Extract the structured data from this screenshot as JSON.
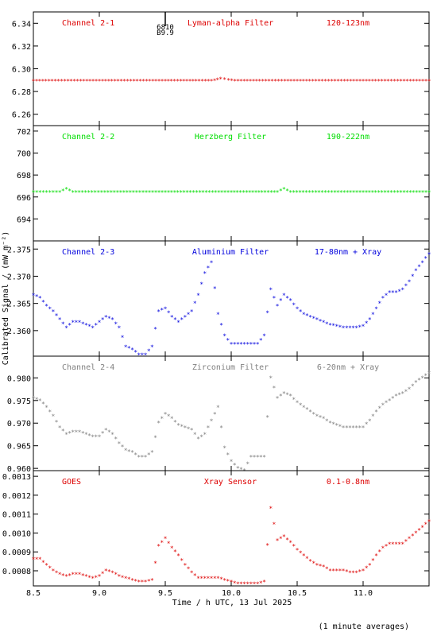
{
  "figure": {
    "x_axis_label": "Time / h UTC, 13 Jul 2025",
    "y_axis_label": "Calibrated Signal / (mW m⁻²)",
    "footnote": "(1 minute averages)",
    "x_range": [
      8.5,
      11.5
    ],
    "x_ticks": [
      "8.5",
      "9.0",
      "9.5",
      "10.0",
      "10.5",
      "11.0"
    ],
    "marker_top_label1": "6810",
    "marker_top_label2": "B9.9",
    "marker_top_time": 9.5
  },
  "chart_data": [
    {
      "type": "scatter",
      "channel_label": "Channel 2-1",
      "filter_label": "Lyman-alpha Filter",
      "range_label": "120-123nm",
      "color": "#dd0000",
      "ylim": [
        6.25,
        6.35
      ],
      "y_ticks": [
        "6.26",
        "6.28",
        "6.30",
        "6.32",
        "6.34"
      ],
      "points": [
        [
          8.5,
          6.289
        ],
        [
          9.0,
          6.289
        ],
        [
          9.5,
          6.289
        ],
        [
          9.85,
          6.289
        ],
        [
          9.92,
          6.291
        ],
        [
          9.98,
          6.29
        ],
        [
          10.05,
          6.289
        ],
        [
          10.5,
          6.289
        ],
        [
          11.0,
          6.289
        ],
        [
          11.5,
          6.289
        ]
      ]
    },
    {
      "type": "scatter",
      "channel_label": "Channel 2-2",
      "filter_label": "Herzberg Filter",
      "range_label": "190-222nm",
      "color": "#00dd00",
      "ylim": [
        692.0,
        702.5
      ],
      "y_ticks": [
        "694",
        "696",
        "698",
        "700",
        "702"
      ],
      "points": [
        [
          8.5,
          696.4
        ],
        [
          8.7,
          696.4
        ],
        [
          8.75,
          696.7
        ],
        [
          8.8,
          696.4
        ],
        [
          9.5,
          696.4
        ],
        [
          10.0,
          696.4
        ],
        [
          10.35,
          696.4
        ],
        [
          10.4,
          696.7
        ],
        [
          10.45,
          696.4
        ],
        [
          11.0,
          696.4
        ],
        [
          11.5,
          696.4
        ]
      ]
    },
    {
      "type": "scatter",
      "channel_label": "Channel 2-3",
      "filter_label": "Aluminium Filter",
      "range_label": "17-80nm + Xray",
      "color": "#0000dd",
      "ylim": [
        2.3553,
        2.3765
      ],
      "y_ticks": [
        "2.360",
        "2.365",
        "2.370",
        "2.375"
      ],
      "points": [
        [
          8.5,
          2.3665
        ],
        [
          8.55,
          2.366
        ],
        [
          8.6,
          2.3645
        ],
        [
          8.65,
          2.3635
        ],
        [
          8.7,
          2.362
        ],
        [
          8.75,
          2.3605
        ],
        [
          8.8,
          2.3615
        ],
        [
          8.85,
          2.3615
        ],
        [
          8.9,
          2.361
        ],
        [
          8.95,
          2.3605
        ],
        [
          9.0,
          2.3615
        ],
        [
          9.05,
          2.3625
        ],
        [
          9.1,
          2.362
        ],
        [
          9.15,
          2.3605
        ],
        [
          9.2,
          2.357
        ],
        [
          9.25,
          2.3565
        ],
        [
          9.3,
          2.3555
        ],
        [
          9.35,
          2.3555
        ],
        [
          9.4,
          2.357
        ],
        [
          9.45,
          2.3635
        ],
        [
          9.5,
          2.364
        ],
        [
          9.55,
          2.3625
        ],
        [
          9.6,
          2.3615
        ],
        [
          9.65,
          2.3625
        ],
        [
          9.7,
          2.3635
        ],
        [
          9.75,
          2.3665
        ],
        [
          9.8,
          2.3705
        ],
        [
          9.85,
          2.3725
        ],
        [
          9.9,
          2.363
        ],
        [
          9.95,
          2.359
        ],
        [
          10.0,
          2.3575
        ],
        [
          10.05,
          2.3575
        ],
        [
          10.1,
          2.3575
        ],
        [
          10.15,
          2.3575
        ],
        [
          10.2,
          2.3575
        ],
        [
          10.25,
          2.359
        ],
        [
          10.3,
          2.3675
        ],
        [
          10.35,
          2.3645
        ],
        [
          10.4,
          2.3665
        ],
        [
          10.45,
          2.3655
        ],
        [
          10.5,
          2.364
        ],
        [
          10.55,
          2.363
        ],
        [
          10.6,
          2.3625
        ],
        [
          10.65,
          2.362
        ],
        [
          10.7,
          2.3615
        ],
        [
          10.75,
          2.361
        ],
        [
          10.8,
          2.3608
        ],
        [
          10.85,
          2.3605
        ],
        [
          10.9,
          2.3605
        ],
        [
          10.95,
          2.3605
        ],
        [
          11.0,
          2.3608
        ],
        [
          11.05,
          2.362
        ],
        [
          11.1,
          2.364
        ],
        [
          11.15,
          2.366
        ],
        [
          11.2,
          2.367
        ],
        [
          11.25,
          2.367
        ],
        [
          11.3,
          2.3675
        ],
        [
          11.35,
          2.369
        ],
        [
          11.4,
          2.371
        ],
        [
          11.45,
          2.3725
        ],
        [
          11.5,
          2.374
        ]
      ]
    },
    {
      "type": "scatter",
      "channel_label": "Channel 2-4",
      "filter_label": "Zirconium Filter",
      "range_label": "6-20nm + Xray",
      "color": "#808080",
      "ylim": [
        0.9595,
        0.9848
      ],
      "y_ticks": [
        "0.960",
        "0.965",
        "0.970",
        "0.975",
        "0.980"
      ],
      "points": [
        [
          8.5,
          0.9755
        ],
        [
          8.55,
          0.975
        ],
        [
          8.6,
          0.9735
        ],
        [
          8.65,
          0.9715
        ],
        [
          8.7,
          0.969
        ],
        [
          8.75,
          0.9675
        ],
        [
          8.8,
          0.968
        ],
        [
          8.85,
          0.968
        ],
        [
          8.9,
          0.9675
        ],
        [
          8.95,
          0.967
        ],
        [
          9.0,
          0.967
        ],
        [
          9.05,
          0.9685
        ],
        [
          9.1,
          0.9675
        ],
        [
          9.15,
          0.9655
        ],
        [
          9.2,
          0.964
        ],
        [
          9.25,
          0.9635
        ],
        [
          9.3,
          0.9625
        ],
        [
          9.35,
          0.9625
        ],
        [
          9.4,
          0.9635
        ],
        [
          9.45,
          0.97
        ],
        [
          9.5,
          0.972
        ],
        [
          9.55,
          0.971
        ],
        [
          9.6,
          0.9695
        ],
        [
          9.65,
          0.969
        ],
        [
          9.7,
          0.9685
        ],
        [
          9.75,
          0.9665
        ],
        [
          9.8,
          0.9675
        ],
        [
          9.85,
          0.9705
        ],
        [
          9.9,
          0.9735
        ],
        [
          9.95,
          0.9645
        ],
        [
          10.0,
          0.9615
        ],
        [
          10.05,
          0.96
        ],
        [
          10.1,
          0.9595
        ],
        [
          10.15,
          0.9625
        ],
        [
          10.2,
          0.9625
        ],
        [
          10.25,
          0.9625
        ],
        [
          10.3,
          0.98
        ],
        [
          10.35,
          0.9755
        ],
        [
          10.4,
          0.9765
        ],
        [
          10.45,
          0.976
        ],
        [
          10.5,
          0.9745
        ],
        [
          10.55,
          0.9735
        ],
        [
          10.6,
          0.9725
        ],
        [
          10.65,
          0.9715
        ],
        [
          10.7,
          0.971
        ],
        [
          10.75,
          0.97
        ],
        [
          10.8,
          0.9695
        ],
        [
          10.85,
          0.969
        ],
        [
          10.9,
          0.969
        ],
        [
          10.95,
          0.969
        ],
        [
          11.0,
          0.969
        ],
        [
          11.05,
          0.9705
        ],
        [
          11.1,
          0.9725
        ],
        [
          11.15,
          0.974
        ],
        [
          11.2,
          0.975
        ],
        [
          11.25,
          0.976
        ],
        [
          11.3,
          0.9765
        ],
        [
          11.35,
          0.9775
        ],
        [
          11.4,
          0.979
        ],
        [
          11.45,
          0.98
        ],
        [
          11.5,
          0.981
        ]
      ]
    },
    {
      "type": "scatter",
      "channel_label": "GOES",
      "filter_label": "Xray Sensor",
      "range_label": "0.1-0.8nm",
      "color": "#dd0000",
      "ylim": [
        0.00072,
        0.00133
      ],
      "y_ticks": [
        "0.0008",
        "0.0009",
        "0.0010",
        "0.0011",
        "0.0012",
        "0.0013"
      ],
      "points": [
        [
          8.5,
          0.00086
        ],
        [
          8.55,
          0.00086
        ],
        [
          8.6,
          0.00083
        ],
        [
          8.65,
          0.0008
        ],
        [
          8.7,
          0.00078
        ],
        [
          8.75,
          0.00077
        ],
        [
          8.8,
          0.00078
        ],
        [
          8.85,
          0.00078
        ],
        [
          8.9,
          0.00077
        ],
        [
          8.95,
          0.00076
        ],
        [
          9.0,
          0.00077
        ],
        [
          9.05,
          0.0008
        ],
        [
          9.1,
          0.00079
        ],
        [
          9.15,
          0.00077
        ],
        [
          9.2,
          0.00076
        ],
        [
          9.25,
          0.00075
        ],
        [
          9.3,
          0.00074
        ],
        [
          9.35,
          0.00074
        ],
        [
          9.4,
          0.00075
        ],
        [
          9.45,
          0.00093
        ],
        [
          9.5,
          0.00097
        ],
        [
          9.55,
          0.00092
        ],
        [
          9.6,
          0.00088
        ],
        [
          9.65,
          0.00083
        ],
        [
          9.7,
          0.00079
        ],
        [
          9.75,
          0.00076
        ],
        [
          9.8,
          0.00076
        ],
        [
          9.85,
          0.00076
        ],
        [
          9.9,
          0.00076
        ],
        [
          9.95,
          0.00075
        ],
        [
          10.0,
          0.00074
        ],
        [
          10.05,
          0.00073
        ],
        [
          10.1,
          0.00073
        ],
        [
          10.15,
          0.00073
        ],
        [
          10.2,
          0.00073
        ],
        [
          10.25,
          0.00074
        ],
        [
          10.3,
          0.00113
        ],
        [
          10.35,
          0.00096
        ],
        [
          10.4,
          0.00098
        ],
        [
          10.45,
          0.00095
        ],
        [
          10.5,
          0.00091
        ],
        [
          10.55,
          0.00088
        ],
        [
          10.6,
          0.00085
        ],
        [
          10.65,
          0.00083
        ],
        [
          10.7,
          0.00082
        ],
        [
          10.75,
          0.0008
        ],
        [
          10.8,
          0.0008
        ],
        [
          10.85,
          0.0008
        ],
        [
          10.9,
          0.00079
        ],
        [
          10.95,
          0.00079
        ],
        [
          11.0,
          0.0008
        ],
        [
          11.05,
          0.00083
        ],
        [
          11.1,
          0.00088
        ],
        [
          11.15,
          0.00092
        ],
        [
          11.2,
          0.00094
        ],
        [
          11.25,
          0.00094
        ],
        [
          11.3,
          0.00094
        ],
        [
          11.35,
          0.00097
        ],
        [
          11.4,
          0.001
        ],
        [
          11.45,
          0.00103
        ],
        [
          11.5,
          0.00106
        ]
      ]
    }
  ]
}
